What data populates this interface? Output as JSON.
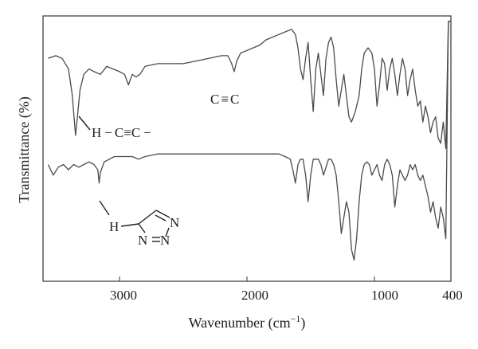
{
  "chart_data": {
    "type": "line",
    "title": "",
    "xlabel": "Wavenumber (cm",
    "xlabel_sup": "−1",
    "xlabel_close": ")",
    "ylabel": "Transmittance (%)",
    "x_axis_reversed": true,
    "xlim": [
      3600,
      400
    ],
    "ylim": [
      0,
      100
    ],
    "grid": false,
    "legend": "none",
    "x_ticks": [
      {
        "value": 3000,
        "label": "3000"
      },
      {
        "value": 2000,
        "label": "2000"
      },
      {
        "value": 1000,
        "label": "1000"
      },
      {
        "value": 400,
        "label": "400"
      }
    ],
    "annotations": {
      "alkyne_group": {
        "h": "H",
        "dash1": "−",
        "c1": "C",
        "triple": "≡",
        "c2": "C",
        "dash2": "−"
      },
      "cc_label": {
        "c1": "C",
        "triple": "≡",
        "c2": "C"
      },
      "triazole": {
        "h": "H",
        "n1": "N",
        "n2": "N",
        "n3": "N"
      }
    },
    "series": [
      {
        "color": "#4a4a4a",
        "points": [
          [
            3560,
            84
          ],
          [
            3500,
            85
          ],
          [
            3450,
            84
          ],
          [
            3400,
            80
          ],
          [
            3370,
            70
          ],
          [
            3345,
            55
          ],
          [
            3330,
            62
          ],
          [
            3310,
            72
          ],
          [
            3280,
            78
          ],
          [
            3240,
            80
          ],
          [
            3200,
            79
          ],
          [
            3150,
            78
          ],
          [
            3100,
            81
          ],
          [
            3050,
            80
          ],
          [
            3000,
            79
          ],
          [
            2960,
            78
          ],
          [
            2930,
            74
          ],
          [
            2900,
            78
          ],
          [
            2870,
            77
          ],
          [
            2840,
            78
          ],
          [
            2800,
            81
          ],
          [
            2700,
            82
          ],
          [
            2600,
            82
          ],
          [
            2500,
            82
          ],
          [
            2400,
            83
          ],
          [
            2300,
            84
          ],
          [
            2200,
            85
          ],
          [
            2150,
            85
          ],
          [
            2120,
            82
          ],
          [
            2100,
            79
          ],
          [
            2080,
            83
          ],
          [
            2050,
            86
          ],
          [
            2000,
            87
          ],
          [
            1950,
            88
          ],
          [
            1900,
            89
          ],
          [
            1850,
            91
          ],
          [
            1800,
            92
          ],
          [
            1750,
            93
          ],
          [
            1700,
            94
          ],
          [
            1650,
            95
          ],
          [
            1620,
            93
          ],
          [
            1600,
            88
          ],
          [
            1580,
            80
          ],
          [
            1560,
            76
          ],
          [
            1540,
            84
          ],
          [
            1520,
            90
          ],
          [
            1500,
            76
          ],
          [
            1480,
            64
          ],
          [
            1460,
            80
          ],
          [
            1440,
            86
          ],
          [
            1420,
            78
          ],
          [
            1400,
            70
          ],
          [
            1380,
            84
          ],
          [
            1360,
            90
          ],
          [
            1340,
            92
          ],
          [
            1320,
            88
          ],
          [
            1300,
            76
          ],
          [
            1280,
            66
          ],
          [
            1260,
            72
          ],
          [
            1240,
            78
          ],
          [
            1220,
            70
          ],
          [
            1200,
            62
          ],
          [
            1180,
            60
          ],
          [
            1150,
            64
          ],
          [
            1120,
            70
          ],
          [
            1100,
            80
          ],
          [
            1080,
            86
          ],
          [
            1050,
            88
          ],
          [
            1020,
            86
          ],
          [
            1000,
            80
          ],
          [
            980,
            66
          ],
          [
            960,
            74
          ],
          [
            940,
            84
          ],
          [
            920,
            82
          ],
          [
            900,
            72
          ],
          [
            880,
            80
          ],
          [
            860,
            84
          ],
          [
            840,
            78
          ],
          [
            820,
            70
          ],
          [
            800,
            78
          ],
          [
            780,
            84
          ],
          [
            760,
            80
          ],
          [
            740,
            70
          ],
          [
            720,
            76
          ],
          [
            700,
            80
          ],
          [
            680,
            72
          ],
          [
            660,
            66
          ],
          [
            640,
            68
          ],
          [
            620,
            60
          ],
          [
            600,
            66
          ],
          [
            580,
            62
          ],
          [
            560,
            56
          ],
          [
            540,
            60
          ],
          [
            520,
            62
          ],
          [
            500,
            54
          ],
          [
            480,
            52
          ],
          [
            460,
            60
          ],
          [
            440,
            50
          ],
          [
            420,
            98
          ],
          [
            400,
            98
          ]
        ]
      },
      {
        "color": "#4a4a4a",
        "points": [
          [
            3560,
            44
          ],
          [
            3520,
            40
          ],
          [
            3480,
            43
          ],
          [
            3440,
            44
          ],
          [
            3400,
            42
          ],
          [
            3360,
            44
          ],
          [
            3320,
            43
          ],
          [
            3280,
            44
          ],
          [
            3240,
            45
          ],
          [
            3200,
            44
          ],
          [
            3170,
            42
          ],
          [
            3160,
            37
          ],
          [
            3150,
            41
          ],
          [
            3120,
            45
          ],
          [
            3080,
            46
          ],
          [
            3040,
            47
          ],
          [
            3000,
            47
          ],
          [
            2950,
            47
          ],
          [
            2900,
            47
          ],
          [
            2850,
            46
          ],
          [
            2800,
            47
          ],
          [
            2700,
            48
          ],
          [
            2600,
            48
          ],
          [
            2500,
            48
          ],
          [
            2400,
            48
          ],
          [
            2300,
            48
          ],
          [
            2200,
            48
          ],
          [
            2100,
            48
          ],
          [
            2000,
            48
          ],
          [
            1950,
            48
          ],
          [
            1900,
            48
          ],
          [
            1850,
            48
          ],
          [
            1800,
            48
          ],
          [
            1750,
            48
          ],
          [
            1700,
            47
          ],
          [
            1660,
            46
          ],
          [
            1640,
            42
          ],
          [
            1620,
            37
          ],
          [
            1600,
            44
          ],
          [
            1580,
            46
          ],
          [
            1560,
            46
          ],
          [
            1540,
            40
          ],
          [
            1520,
            30
          ],
          [
            1500,
            40
          ],
          [
            1480,
            46
          ],
          [
            1460,
            46
          ],
          [
            1440,
            46
          ],
          [
            1420,
            44
          ],
          [
            1400,
            40
          ],
          [
            1380,
            43
          ],
          [
            1360,
            46
          ],
          [
            1340,
            46
          ],
          [
            1320,
            44
          ],
          [
            1300,
            40
          ],
          [
            1280,
            30
          ],
          [
            1260,
            18
          ],
          [
            1240,
            24
          ],
          [
            1220,
            30
          ],
          [
            1200,
            26
          ],
          [
            1180,
            12
          ],
          [
            1160,
            8
          ],
          [
            1140,
            16
          ],
          [
            1120,
            30
          ],
          [
            1100,
            40
          ],
          [
            1080,
            44
          ],
          [
            1060,
            45
          ],
          [
            1040,
            44
          ],
          [
            1020,
            40
          ],
          [
            1000,
            42
          ],
          [
            980,
            44
          ],
          [
            960,
            40
          ],
          [
            940,
            38
          ],
          [
            920,
            44
          ],
          [
            900,
            46
          ],
          [
            880,
            44
          ],
          [
            860,
            40
          ],
          [
            840,
            28
          ],
          [
            820,
            36
          ],
          [
            800,
            42
          ],
          [
            780,
            40
          ],
          [
            760,
            38
          ],
          [
            740,
            40
          ],
          [
            720,
            44
          ],
          [
            700,
            42
          ],
          [
            680,
            44
          ],
          [
            660,
            40
          ],
          [
            640,
            38
          ],
          [
            620,
            40
          ],
          [
            600,
            36
          ],
          [
            580,
            32
          ],
          [
            560,
            26
          ],
          [
            540,
            30
          ],
          [
            520,
            24
          ],
          [
            500,
            20
          ],
          [
            480,
            28
          ],
          [
            460,
            24
          ],
          [
            440,
            16
          ],
          [
            420,
            98
          ],
          [
            400,
            98
          ]
        ]
      }
    ]
  }
}
